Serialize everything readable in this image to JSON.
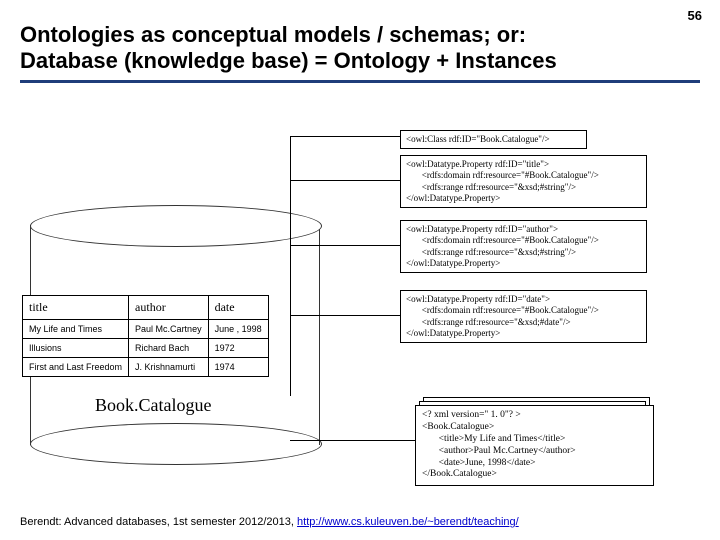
{
  "pageNumber": "56",
  "title": "Ontologies as conceptual models / schemas; or:\nDatabase (knowledge base) = Ontology + Instances",
  "table": {
    "headers": [
      "title",
      "author",
      "date"
    ],
    "rows": [
      [
        "My Life and Times",
        "Paul Mc.Cartney",
        "June , 1998"
      ],
      [
        "Illusions",
        "Richard Bach",
        "1972"
      ],
      [
        "First and Last Freedom",
        "J. Krishnamurti",
        "1974"
      ]
    ]
  },
  "catalogLabel": "Book.Catalogue",
  "owl": {
    "b1": "<owl:Class rdf:ID=\"Book.Catalogue\"/>",
    "b2": "<owl:Datatype.Property rdf:ID=\"title\">\n       <rdfs:domain rdf:resource=\"#Book.Catalogue\"/>\n       <rdfs:range rdf:resource=\"&xsd;#string\"/>\n</owl:Datatype.Property>",
    "b3": "<owl:Datatype.Property rdf:ID=\"author\">\n       <rdfs:domain rdf:resource=\"#Book.Catalogue\"/>\n       <rdfs:range rdf:resource=\"&xsd;#string\"/>\n</owl:Datatype.Property>",
    "b4": "<owl:Datatype.Property rdf:ID=\"date\">\n       <rdfs:domain rdf:resource=\"#Book.Catalogue\"/>\n       <rdfs:range rdf:resource=\"&xsd;#date\"/>\n</owl:Datatype.Property>"
  },
  "xml": "<? xml version=\" 1. 0\"? >\n<Book.Catalogue>\n       <title>My Life and Times</title>\n       <author>Paul Mc.Cartney</author>\n       <date>June, 1998</date>\n</Book.Catalogue>",
  "footer": {
    "prefix": "Berendt: Advanced databases, 1st semester 2012/2013, ",
    "link": "http://www.cs.kuleuven.be/~berendt/teaching/"
  },
  "colors": {
    "underline": "#1f3d7a",
    "link": "#0000cc",
    "text": "#000000",
    "bg": "#ffffff"
  }
}
